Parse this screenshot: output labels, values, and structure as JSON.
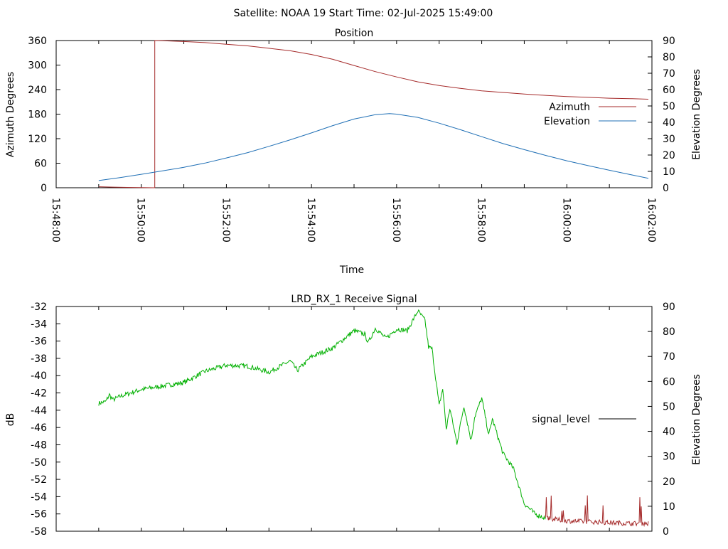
{
  "title": "Satellite: NOAA 19    Start Time: 02-Jul-2025 15:49:00",
  "colors": {
    "azimuth": "#a52a2a",
    "elevation": "#1f6fb5",
    "signal_green": "#00b000",
    "signal_low": "#a52a2a",
    "axis": "#000000"
  },
  "chart_data": [
    {
      "type": "line",
      "title": "Position",
      "xlabel": "Time",
      "ylabel": "Azimuth Degrees",
      "y2label": "Elevation Degrees",
      "xlim": [
        "15:48:00",
        "16:02:00"
      ],
      "xticks": [
        "15:48:00",
        "15:50:00",
        "15:52:00",
        "15:54:00",
        "15:56:00",
        "15:58:00",
        "16:00:00",
        "16:02:00"
      ],
      "ylim": [
        0,
        360
      ],
      "yticks": [
        "0",
        "60",
        "120",
        "180",
        "240",
        "300",
        "360"
      ],
      "y2lim": [
        0,
        90
      ],
      "y2ticks": [
        "0",
        "10",
        "20",
        "30",
        "40",
        "50",
        "60",
        "70",
        "80",
        "90"
      ],
      "legend_position": "right",
      "series": [
        {
          "name": "Azimuth",
          "axis": "y",
          "points": [
            [
              "15:49:00",
              2.5
            ],
            [
              "15:49:20",
              1.6
            ],
            [
              "15:49:40",
              0.8
            ],
            [
              "15:50:00",
              0.3
            ],
            [
              "15:50:19",
              0
            ],
            [
              "15:50:19",
              360
            ],
            [
              "15:50:30",
              359.5
            ],
            [
              "15:51:00",
              357.5
            ],
            [
              "15:51:30",
              355
            ],
            [
              "15:52:00",
              351
            ],
            [
              "15:52:30",
              347
            ],
            [
              "15:53:00",
              341
            ],
            [
              "15:53:30",
              335
            ],
            [
              "15:54:00",
              326
            ],
            [
              "15:54:30",
              314
            ],
            [
              "15:55:00",
              299
            ],
            [
              "15:55:30",
              284
            ],
            [
              "15:56:00",
              271
            ],
            [
              "15:56:30",
              259
            ],
            [
              "15:57:00",
              250
            ],
            [
              "15:57:30",
              243
            ],
            [
              "15:58:00",
              237
            ],
            [
              "15:58:30",
              233
            ],
            [
              "15:59:00",
              229
            ],
            [
              "15:59:30",
              226
            ],
            [
              "16:00:00",
              223
            ],
            [
              "16:00:30",
              221
            ],
            [
              "16:01:00",
              219
            ],
            [
              "16:01:30",
              218
            ],
            [
              "16:01:55",
              216.5
            ]
          ]
        },
        {
          "name": "Elevation",
          "axis": "y2",
          "points": [
            [
              "15:49:00",
              4.4
            ],
            [
              "15:49:30",
              6.2
            ],
            [
              "15:50:00",
              8.2
            ],
            [
              "15:50:30",
              10.3
            ],
            [
              "15:51:00",
              12.5
            ],
            [
              "15:51:30",
              15.1
            ],
            [
              "15:52:00",
              18.2
            ],
            [
              "15:52:30",
              21.5
            ],
            [
              "15:53:00",
              25.3
            ],
            [
              "15:53:30",
              29.3
            ],
            [
              "15:54:00",
              33.5
            ],
            [
              "15:54:30",
              38
            ],
            [
              "15:55:00",
              42
            ],
            [
              "15:55:30",
              44.7
            ],
            [
              "15:55:50",
              45.3
            ],
            [
              "15:56:00",
              45
            ],
            [
              "15:56:30",
              43
            ],
            [
              "15:57:00",
              39.5
            ],
            [
              "15:57:30",
              35.5
            ],
            [
              "15:58:00",
              31.2
            ],
            [
              "15:58:30",
              27
            ],
            [
              "15:59:00",
              23.3
            ],
            [
              "15:59:30",
              19.8
            ],
            [
              "16:00:00",
              16.5
            ],
            [
              "16:00:30",
              13.5
            ],
            [
              "16:01:00",
              10.7
            ],
            [
              "16:01:30",
              8
            ],
            [
              "16:01:55",
              5.8
            ]
          ]
        }
      ]
    },
    {
      "type": "line",
      "title": "LRD_RX_1 Receive Signal",
      "ylabel": "dB",
      "y2label": "Elevation Degrees",
      "xlim": [
        "15:48:00",
        "16:02:00"
      ],
      "ylim": [
        -58,
        -32
      ],
      "yticks": [
        "-58",
        "-56",
        "-54",
        "-52",
        "-50",
        "-48",
        "-46",
        "-44",
        "-42",
        "-40",
        "-38",
        "-36",
        "-34",
        "-32"
      ],
      "y2lim": [
        0,
        90
      ],
      "y2ticks": [
        "0",
        "10",
        "20",
        "30",
        "40",
        "50",
        "60",
        "70",
        "80",
        "90"
      ],
      "legend_position": "right",
      "series": [
        {
          "name": "signal_level",
          "axis": "y",
          "points": [
            [
              "15:49:00",
              -43.2
            ],
            [
              "15:49:10",
              -43
            ],
            [
              "15:49:15",
              -42.2
            ],
            [
              "15:49:20",
              -42.8
            ],
            [
              "15:49:30",
              -42.4
            ],
            [
              "15:50:00",
              -41.6
            ],
            [
              "15:50:30",
              -41.2
            ],
            [
              "15:51:00",
              -40.8
            ],
            [
              "15:51:30",
              -39.5
            ],
            [
              "15:52:00",
              -38.8
            ],
            [
              "15:52:30",
              -38.9
            ],
            [
              "15:53:00",
              -39.6
            ],
            [
              "15:53:30",
              -38.3
            ],
            [
              "15:53:40",
              -39.4
            ],
            [
              "15:54:00",
              -37.8
            ],
            [
              "15:54:30",
              -36.8
            ],
            [
              "15:55:00",
              -34.8
            ],
            [
              "15:55:15",
              -35.2
            ],
            [
              "15:55:20",
              -36.2
            ],
            [
              "15:55:30",
              -34.5
            ],
            [
              "15:55:45",
              -35.7
            ],
            [
              "15:56:00",
              -34.6
            ],
            [
              "15:56:15",
              -34.8
            ],
            [
              "15:56:30",
              -32.5
            ],
            [
              "15:56:40",
              -33.6
            ],
            [
              "15:56:45",
              -36.7
            ],
            [
              "15:56:50",
              -36.9
            ],
            [
              "15:57:00",
              -43.5
            ],
            [
              "15:57:05",
              -41.5
            ],
            [
              "15:57:10",
              -46.2
            ],
            [
              "15:57:15",
              -43.8
            ],
            [
              "15:57:25",
              -47.8
            ],
            [
              "15:57:35",
              -43.5
            ],
            [
              "15:57:45",
              -47.5
            ],
            [
              "15:57:50",
              -44.8
            ],
            [
              "15:58:00",
              -42.6
            ],
            [
              "15:58:10",
              -46.9
            ],
            [
              "15:58:15",
              -45
            ],
            [
              "15:58:30",
              -49
            ],
            [
              "15:58:45",
              -50.8
            ],
            [
              "15:59:00",
              -54.8
            ],
            [
              "15:59:15",
              -56
            ],
            [
              "15:59:30",
              -56.5
            ],
            [
              "16:00:00",
              -56.8
            ],
            [
              "16:00:30",
              -56.9
            ],
            [
              "16:01:00",
              -57
            ],
            [
              "16:01:30",
              -57.1
            ],
            [
              "16:01:55",
              -57.1
            ]
          ]
        }
      ]
    }
  ]
}
